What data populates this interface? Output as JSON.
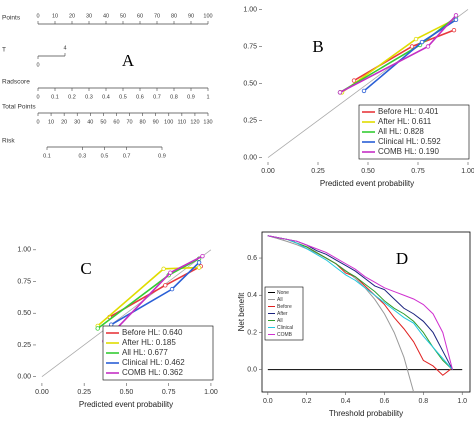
{
  "chart_data": [
    {
      "type": "nomogram",
      "label": "A",
      "rows": [
        {
          "name": "Points",
          "xlim": [
            0,
            100
          ],
          "ticks": [
            0,
            10,
            20,
            30,
            40,
            50,
            60,
            70,
            80,
            90,
            100
          ]
        },
        {
          "name": "T",
          "xlim": [
            0,
            4
          ],
          "ticks": [
            0,
            4
          ]
        },
        {
          "name": "Radscore",
          "xlim": [
            0,
            1
          ],
          "ticks": [
            0,
            0.1,
            0.2,
            0.3,
            0.4,
            0.5,
            0.6,
            0.7,
            0.8,
            0.9,
            1
          ]
        },
        {
          "name": "Total Points",
          "xlim": [
            0,
            130
          ],
          "ticks": [
            0,
            10,
            20,
            30,
            40,
            50,
            60,
            70,
            80,
            90,
            100,
            110,
            120,
            130
          ]
        },
        {
          "name": "Risk",
          "scale": "logit",
          "xlim": [
            0.1,
            0.9
          ],
          "ticks": [
            0.1,
            0.3,
            0.5,
            0.7,
            0.9
          ]
        }
      ]
    },
    {
      "type": "line",
      "label": "B",
      "xlabel": "Predicted event probability",
      "markers": true,
      "diagonal": true,
      "legend": "lower right",
      "xlim": [
        -0.03,
        1.02
      ],
      "ylim": [
        -0.03,
        1.03
      ],
      "xticks": [
        {
          "value": 0,
          "label": "0.00"
        },
        {
          "value": 0.25,
          "label": "0.25"
        },
        {
          "value": 0.5,
          "label": "0.50"
        },
        {
          "value": 0.75,
          "label": "0.75"
        },
        {
          "value": 1,
          "label": "1.00"
        }
      ],
      "yticks": [
        {
          "value": 0,
          "label": "0.00"
        },
        {
          "value": 0.25,
          "label": "0.25"
        },
        {
          "value": 0.5,
          "label": "0.50"
        },
        {
          "value": 0.75,
          "label": "0.75"
        },
        {
          "value": 1,
          "label": "1.00"
        }
      ],
      "series": [
        {
          "name": "Before HL: 0.401",
          "color": "#e8383d",
          "x": [
            0.43,
            0.72,
            0.93
          ],
          "values": [
            0.52,
            0.75,
            0.86
          ]
        },
        {
          "name": "After HL: 0.611",
          "color": "#e0dc00",
          "x": [
            0.37,
            0.74,
            0.93
          ],
          "values": [
            0.44,
            0.8,
            0.93
          ]
        },
        {
          "name": "All HL: 0.828",
          "color": "#33cc33",
          "x": [
            0.36,
            0.76,
            0.94
          ],
          "values": [
            0.44,
            0.76,
            0.95
          ]
        },
        {
          "name": "Clinical HL: 0.592",
          "color": "#2a5fd6",
          "x": [
            0.48,
            0.77,
            0.94
          ],
          "values": [
            0.45,
            0.78,
            0.93
          ]
        },
        {
          "name": "COMB HL: 0.190",
          "color": "#c42fc4",
          "x": [
            0.36,
            0.8,
            0.94
          ],
          "values": [
            0.44,
            0.75,
            0.96
          ]
        }
      ]
    },
    {
      "type": "line",
      "label": "C",
      "xlabel": "Predicted event probability",
      "markers": true,
      "diagonal": true,
      "legend": "lower right",
      "xlim": [
        -0.035,
        1.03
      ],
      "ylim": [
        -0.05,
        1.03
      ],
      "xticks": [
        {
          "value": 0,
          "label": "0.00"
        },
        {
          "value": 0.25,
          "label": "0.25"
        },
        {
          "value": 0.5,
          "label": "0.50"
        },
        {
          "value": 0.75,
          "label": "0.75"
        },
        {
          "value": 1,
          "label": "1.00"
        }
      ],
      "yticks": [
        {
          "value": 0,
          "label": "0.00"
        },
        {
          "value": 0.25,
          "label": "0.25"
        },
        {
          "value": 0.5,
          "label": "0.50"
        },
        {
          "value": 0.75,
          "label": "0.75"
        },
        {
          "value": 1,
          "label": "1.00"
        }
      ],
      "series": [
        {
          "name": "Before HL: 0.640",
          "color": "#e8383d",
          "x": [
            0.4,
            0.73,
            0.94
          ],
          "values": [
            0.47,
            0.72,
            0.87
          ]
        },
        {
          "name": "After HL: 0.185",
          "color": "#e0dc00",
          "x": [
            0.33,
            0.72,
            0.93
          ],
          "values": [
            0.4,
            0.85,
            0.86
          ]
        },
        {
          "name": "All HL: 0.677",
          "color": "#33cc33",
          "x": [
            0.33,
            0.75,
            0.93
          ],
          "values": [
            0.38,
            0.8,
            0.93
          ]
        },
        {
          "name": "Clinical HL: 0.462",
          "color": "#2a5fd6",
          "x": [
            0.41,
            0.77,
            0.93
          ],
          "values": [
            0.41,
            0.69,
            0.9
          ]
        },
        {
          "name": "COMB HL: 0.362",
          "color": "#c42fc4",
          "x": [
            0.37,
            0.76,
            0.95
          ],
          "values": [
            0.28,
            0.82,
            0.95
          ]
        }
      ]
    },
    {
      "type": "line",
      "label": "D",
      "xlabel": "Threshold probability",
      "ylabel": "Net benefit",
      "frame": true,
      "legend": "upper left",
      "xlim": [
        -0.03,
        1.04
      ],
      "ylim": [
        -0.12,
        0.74
      ],
      "xticks": [
        {
          "value": 0,
          "label": "0.0"
        },
        {
          "value": 0.2,
          "label": "0.2"
        },
        {
          "value": 0.4,
          "label": "0.4"
        },
        {
          "value": 0.6,
          "label": "0.6"
        },
        {
          "value": 0.8,
          "label": "0.8"
        },
        {
          "value": 1,
          "label": "1.0"
        }
      ],
      "yticks": [
        {
          "value": 0,
          "label": "0.0"
        },
        {
          "value": 0.2,
          "label": "0.2"
        },
        {
          "value": 0.4,
          "label": "0.4"
        },
        {
          "value": 0.6,
          "label": "0.6"
        }
      ],
      "series": [
        {
          "name": "None",
          "color": "#000000",
          "x": [
            0,
            1
          ],
          "values": [
            0,
            0
          ]
        },
        {
          "name": "All",
          "color": "#9a9a9a",
          "x": [
            0,
            0.05,
            0.1,
            0.15,
            0.2,
            0.25,
            0.3,
            0.35,
            0.4,
            0.45,
            0.5,
            0.55,
            0.6,
            0.65,
            0.7,
            0.75
          ],
          "values": [
            0.72,
            0.705,
            0.689,
            0.671,
            0.65,
            0.627,
            0.6,
            0.569,
            0.533,
            0.491,
            0.44,
            0.378,
            0.3,
            0.2,
            0.067,
            -0.12
          ]
        },
        {
          "name": "Before",
          "color": "#e02020",
          "x": [
            0,
            0.05,
            0.1,
            0.15,
            0.2,
            0.25,
            0.3,
            0.35,
            0.4,
            0.45,
            0.5,
            0.55,
            0.6,
            0.65,
            0.7,
            0.75,
            0.8,
            0.85,
            0.9,
            0.95
          ],
          "values": [
            0.72,
            0.71,
            0.7,
            0.68,
            0.66,
            0.63,
            0.6,
            0.57,
            0.52,
            0.5,
            0.45,
            0.4,
            0.35,
            0.28,
            0.22,
            0.15,
            0.05,
            0.02,
            -0.03,
            0.01
          ]
        },
        {
          "name": "After",
          "color": "#1a237e",
          "x": [
            0,
            0.05,
            0.1,
            0.15,
            0.2,
            0.25,
            0.3,
            0.35,
            0.4,
            0.45,
            0.5,
            0.55,
            0.6,
            0.65,
            0.7,
            0.75,
            0.8,
            0.85,
            0.9,
            0.95
          ],
          "values": [
            0.72,
            0.71,
            0.7,
            0.69,
            0.67,
            0.64,
            0.62,
            0.59,
            0.56,
            0.53,
            0.49,
            0.45,
            0.43,
            0.38,
            0.33,
            0.3,
            0.26,
            0.2,
            0.1,
            0
          ]
        },
        {
          "name": "All",
          "color": "#2e9e2e",
          "x": [
            0,
            0.05,
            0.1,
            0.15,
            0.2,
            0.25,
            0.3,
            0.35,
            0.4,
            0.45,
            0.5,
            0.55,
            0.6,
            0.65,
            0.7,
            0.75,
            0.8,
            0.85,
            0.9,
            0.95
          ],
          "values": [
            0.72,
            0.71,
            0.7,
            0.68,
            0.66,
            0.63,
            0.6,
            0.57,
            0.53,
            0.5,
            0.46,
            0.42,
            0.37,
            0.33,
            0.3,
            0.26,
            0.2,
            0.12,
            0.05,
            0
          ]
        },
        {
          "name": "Clinical",
          "color": "#22c8e0",
          "x": [
            0,
            0.05,
            0.1,
            0.15,
            0.2,
            0.25,
            0.3,
            0.35,
            0.4,
            0.45,
            0.5,
            0.55,
            0.6,
            0.65,
            0.7,
            0.75,
            0.8,
            0.85,
            0.9,
            0.95
          ],
          "values": [
            0.72,
            0.71,
            0.7,
            0.68,
            0.65,
            0.62,
            0.59,
            0.55,
            0.51,
            0.48,
            0.44,
            0.4,
            0.36,
            0.32,
            0.28,
            0.25,
            0.18,
            0.12,
            0.06,
            0
          ]
        },
        {
          "name": "COMB",
          "color": "#d030d0",
          "x": [
            0,
            0.05,
            0.1,
            0.15,
            0.2,
            0.25,
            0.3,
            0.35,
            0.4,
            0.45,
            0.5,
            0.55,
            0.6,
            0.65,
            0.7,
            0.75,
            0.8,
            0.85,
            0.9,
            0.95
          ],
          "values": [
            0.72,
            0.71,
            0.7,
            0.69,
            0.67,
            0.65,
            0.63,
            0.6,
            0.57,
            0.54,
            0.5,
            0.47,
            0.44,
            0.42,
            0.4,
            0.38,
            0.35,
            0.3,
            0.2,
            0
          ]
        }
      ]
    }
  ]
}
